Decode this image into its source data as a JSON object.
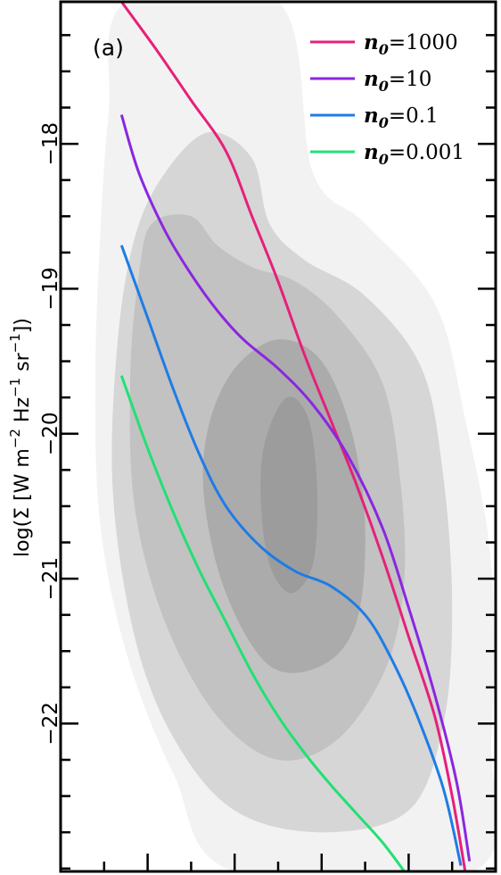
{
  "chart_data": {
    "type": "line",
    "panel_label": "(a)",
    "ylabel": "log(Σ [W m⁻² Hz⁻¹ sr⁻¹])",
    "ylabel_parts": {
      "prefix": "log(Σ [W m",
      "e1": "−2",
      "mid1": " Hz",
      "e2": "−1",
      "mid2": " sr",
      "e3": "−1",
      "suffix": "])"
    },
    "ylim": [
      -23.02,
      -17.02
    ],
    "xlim": [
      0,
      1
    ],
    "yticks_major": [
      -18,
      -19,
      -20,
      -21,
      -22
    ],
    "ytick_labels": [
      "−18",
      "−19",
      "−20",
      "−21",
      "−22"
    ],
    "yticks_minor_step": 0.25,
    "xticks_major": [
      0.2,
      0.4,
      0.6,
      0.8
    ],
    "xticks_minor_step": 0.1,
    "legend_position": "top-right",
    "series": [
      {
        "name_var": "n",
        "name_sub": "0",
        "name_val": "=1000",
        "color": "#e6207a",
        "points": [
          [
            0.14,
            -17.02
          ],
          [
            0.22,
            -17.35
          ],
          [
            0.3,
            -17.7
          ],
          [
            0.38,
            -18.05
          ],
          [
            0.44,
            -18.5
          ],
          [
            0.5,
            -18.95
          ],
          [
            0.56,
            -19.45
          ],
          [
            0.62,
            -19.9
          ],
          [
            0.68,
            -20.35
          ],
          [
            0.74,
            -20.85
          ],
          [
            0.8,
            -21.4
          ],
          [
            0.86,
            -21.95
          ],
          [
            0.9,
            -22.5
          ],
          [
            0.93,
            -23.02
          ]
        ]
      },
      {
        "name_var": "n",
        "name_sub": "0",
        "name_val": "=10",
        "color": "#8a26e0",
        "points": [
          [
            0.14,
            -17.8
          ],
          [
            0.18,
            -18.2
          ],
          [
            0.24,
            -18.6
          ],
          [
            0.3,
            -18.9
          ],
          [
            0.36,
            -19.15
          ],
          [
            0.42,
            -19.35
          ],
          [
            0.5,
            -19.55
          ],
          [
            0.58,
            -19.8
          ],
          [
            0.66,
            -20.15
          ],
          [
            0.74,
            -20.65
          ],
          [
            0.8,
            -21.2
          ],
          [
            0.86,
            -21.8
          ],
          [
            0.91,
            -22.4
          ],
          [
            0.94,
            -22.95
          ]
        ]
      },
      {
        "name_var": "n",
        "name_sub": "0",
        "name_val": "=0.1",
        "color": "#1e7ce6",
        "points": [
          [
            0.14,
            -18.7
          ],
          [
            0.2,
            -19.2
          ],
          [
            0.26,
            -19.7
          ],
          [
            0.32,
            -20.15
          ],
          [
            0.38,
            -20.5
          ],
          [
            0.46,
            -20.78
          ],
          [
            0.54,
            -20.95
          ],
          [
            0.62,
            -21.05
          ],
          [
            0.7,
            -21.25
          ],
          [
            0.76,
            -21.55
          ],
          [
            0.82,
            -21.95
          ],
          [
            0.88,
            -22.45
          ],
          [
            0.92,
            -22.98
          ]
        ]
      },
      {
        "name_var": "n",
        "name_sub": "0",
        "name_val": "=0.001",
        "color": "#22e074",
        "points": [
          [
            0.14,
            -19.6
          ],
          [
            0.2,
            -20.1
          ],
          [
            0.26,
            -20.55
          ],
          [
            0.32,
            -20.95
          ],
          [
            0.38,
            -21.3
          ],
          [
            0.44,
            -21.65
          ],
          [
            0.5,
            -21.95
          ],
          [
            0.56,
            -22.2
          ],
          [
            0.62,
            -22.42
          ],
          [
            0.68,
            -22.62
          ],
          [
            0.74,
            -22.82
          ],
          [
            0.79,
            -23.02
          ]
        ]
      }
    ],
    "density_contours": {
      "fills": [
        "#f2f2f2",
        "#d6d6d6",
        "#c2c2c2",
        "#ababab",
        "#9c9c9c"
      ],
      "levels": [
        [
          [
            0.15,
            -17.02
          ],
          [
            0.5,
            -17.02
          ],
          [
            0.58,
            -18.2
          ],
          [
            0.7,
            -18.55
          ],
          [
            0.86,
            -19.1
          ],
          [
            0.93,
            -19.9
          ],
          [
            0.99,
            -20.9
          ],
          [
            0.99,
            -22.1
          ],
          [
            0.95,
            -23.02
          ],
          [
            0.4,
            -23.02
          ],
          [
            0.26,
            -22.35
          ],
          [
            0.15,
            -21.5
          ],
          [
            0.09,
            -20.6
          ],
          [
            0.08,
            -19.6
          ],
          [
            0.09,
            -18.7
          ],
          [
            0.11,
            -17.8
          ]
        ],
        [
          [
            0.24,
            -18.2
          ],
          [
            0.34,
            -17.92
          ],
          [
            0.44,
            -18.1
          ],
          [
            0.48,
            -18.55
          ],
          [
            0.56,
            -18.8
          ],
          [
            0.7,
            -19.05
          ],
          [
            0.83,
            -19.55
          ],
          [
            0.88,
            -20.3
          ],
          [
            0.9,
            -21.2
          ],
          [
            0.88,
            -22.0
          ],
          [
            0.8,
            -22.6
          ],
          [
            0.6,
            -22.75
          ],
          [
            0.4,
            -22.6
          ],
          [
            0.26,
            -22.1
          ],
          [
            0.17,
            -21.4
          ],
          [
            0.12,
            -20.4
          ],
          [
            0.13,
            -19.4
          ],
          [
            0.17,
            -18.65
          ]
        ],
        [
          [
            0.21,
            -18.55
          ],
          [
            0.3,
            -18.5
          ],
          [
            0.36,
            -18.7
          ],
          [
            0.44,
            -18.85
          ],
          [
            0.54,
            -18.95
          ],
          [
            0.64,
            -19.2
          ],
          [
            0.74,
            -19.65
          ],
          [
            0.78,
            -20.3
          ],
          [
            0.79,
            -21.0
          ],
          [
            0.75,
            -21.6
          ],
          [
            0.64,
            -22.1
          ],
          [
            0.5,
            -22.25
          ],
          [
            0.36,
            -21.95
          ],
          [
            0.24,
            -21.3
          ],
          [
            0.17,
            -20.5
          ],
          [
            0.16,
            -19.6
          ],
          [
            0.18,
            -18.9
          ]
        ],
        [
          [
            0.4,
            -19.55
          ],
          [
            0.5,
            -19.35
          ],
          [
            0.6,
            -19.5
          ],
          [
            0.67,
            -20.0
          ],
          [
            0.7,
            -20.65
          ],
          [
            0.68,
            -21.3
          ],
          [
            0.6,
            -21.6
          ],
          [
            0.48,
            -21.6
          ],
          [
            0.38,
            -21.1
          ],
          [
            0.33,
            -20.45
          ],
          [
            0.34,
            -19.95
          ]
        ],
        [
          [
            0.47,
            -20.05
          ],
          [
            0.52,
            -19.75
          ],
          [
            0.57,
            -19.9
          ],
          [
            0.59,
            -20.4
          ],
          [
            0.58,
            -20.9
          ],
          [
            0.53,
            -21.1
          ],
          [
            0.48,
            -20.9
          ],
          [
            0.46,
            -20.45
          ]
        ]
      ]
    }
  }
}
